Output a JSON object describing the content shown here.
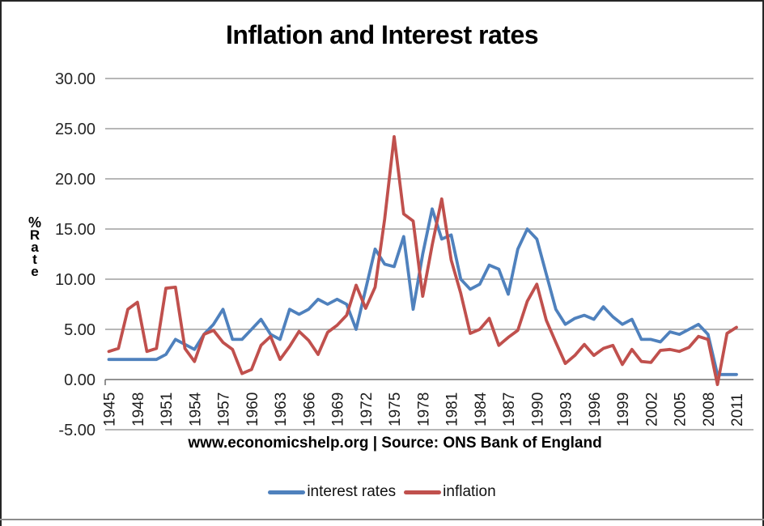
{
  "title": "Inflation and Interest rates",
  "y_axis_title_lines": [
    "%",
    "R",
    "a",
    "t",
    "e"
  ],
  "source_text": "www.economicshelp.org | Source: ONS Bank of England",
  "legend": [
    {
      "label": "interest rates",
      "color": "#4F81BD"
    },
    {
      "label": "inflation",
      "color": "#C0504D"
    }
  ],
  "chart_data": {
    "type": "line",
    "title": "Inflation and Interest rates",
    "ylabel": "% Rate",
    "xlabel": "",
    "ylim": [
      -5,
      30
    ],
    "grid": true,
    "grid_color": "#8c8c8c",
    "axis_line_color": "#6e6e6e",
    "legend_position": "bottom",
    "y_tick_labels": [
      "30.00",
      "25.00",
      "20.00",
      "15.00",
      "10.00",
      "5.00",
      "0.00",
      "-5.00"
    ],
    "x_tick_years": [
      1945,
      1948,
      1951,
      1954,
      1957,
      1960,
      1963,
      1966,
      1969,
      1972,
      1975,
      1978,
      1981,
      1984,
      1987,
      1990,
      1993,
      1996,
      1999,
      2002,
      2005,
      2008,
      2011
    ],
    "years": [
      1945,
      1946,
      1947,
      1948,
      1949,
      1950,
      1951,
      1952,
      1953,
      1954,
      1955,
      1956,
      1957,
      1958,
      1959,
      1960,
      1961,
      1962,
      1963,
      1964,
      1965,
      1966,
      1967,
      1968,
      1969,
      1970,
      1971,
      1972,
      1973,
      1974,
      1975,
      1976,
      1977,
      1978,
      1979,
      1980,
      1981,
      1982,
      1983,
      1984,
      1985,
      1986,
      1987,
      1988,
      1989,
      1990,
      1991,
      1992,
      1993,
      1994,
      1995,
      1996,
      1997,
      1998,
      1999,
      2000,
      2001,
      2002,
      2003,
      2004,
      2005,
      2006,
      2007,
      2008,
      2009,
      2010,
      2011
    ],
    "series": [
      {
        "name": "interest rates",
        "color": "#4F81BD",
        "values": [
          2.0,
          2.0,
          2.0,
          2.0,
          2.0,
          2.0,
          2.5,
          4.0,
          3.5,
          3.0,
          4.5,
          5.5,
          7.0,
          4.0,
          4.0,
          5.0,
          6.0,
          4.5,
          4.0,
          7.0,
          6.5,
          7.0,
          8.0,
          7.5,
          8.0,
          7.5,
          5.0,
          9.0,
          13.0,
          11.5,
          11.25,
          14.25,
          7.0,
          12.5,
          17.0,
          14.0,
          14.4,
          10.0,
          9.0,
          9.5,
          11.4,
          11.0,
          8.5,
          13.0,
          15.0,
          14.0,
          10.5,
          7.0,
          5.5,
          6.1,
          6.4,
          6.0,
          7.25,
          6.25,
          5.5,
          6.0,
          4.0,
          4.0,
          3.75,
          4.75,
          4.5,
          5.0,
          5.5,
          4.5,
          0.5,
          0.5,
          0.5
        ]
      },
      {
        "name": "inflation",
        "color": "#C0504D",
        "values": [
          2.8,
          3.1,
          7.0,
          7.7,
          2.8,
          3.1,
          9.1,
          9.2,
          3.1,
          1.8,
          4.5,
          4.9,
          3.7,
          3.0,
          0.6,
          1.0,
          3.4,
          4.3,
          2.0,
          3.3,
          4.8,
          3.9,
          2.5,
          4.7,
          5.4,
          6.4,
          9.4,
          7.1,
          9.2,
          16.0,
          24.2,
          16.5,
          15.8,
          8.3,
          13.4,
          18.0,
          11.9,
          8.6,
          4.6,
          5.0,
          6.1,
          3.4,
          4.2,
          4.9,
          7.8,
          9.5,
          5.9,
          3.7,
          1.6,
          2.4,
          3.5,
          2.4,
          3.1,
          3.4,
          1.5,
          3.0,
          1.8,
          1.7,
          2.9,
          3.0,
          2.8,
          3.2,
          4.3,
          4.0,
          -0.5,
          4.6,
          5.2
        ]
      }
    ]
  }
}
